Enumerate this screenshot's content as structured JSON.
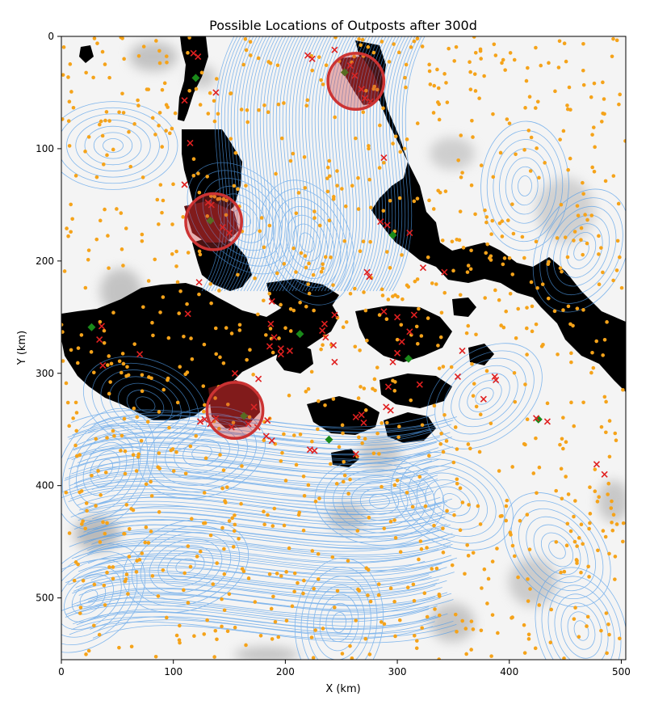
{
  "chart_data": {
    "type": "scatter",
    "title": "Possible Locations of Outposts after 300d",
    "xlabel": "X (km)",
    "ylabel": "Y (km)",
    "xlim": [
      0,
      504
    ],
    "ylim": [
      555,
      0
    ],
    "y_inverted": true,
    "xticks": [
      0,
      100,
      200,
      300,
      400,
      500
    ],
    "yticks": [
      0,
      100,
      200,
      300,
      400,
      500
    ],
    "grid": false,
    "legend": "none",
    "background": "grayscale field with black land masks and blue streamlines",
    "colors": {
      "streamlines": "#4f9be8",
      "candidate_points": "#f5a31a",
      "red_markers": "#e02020",
      "green_markers": "#1a8a1a",
      "circles": "#cc3333",
      "land": "#000000",
      "circled_land": "#5a0f0f"
    },
    "circles": [
      {
        "x": 263,
        "y": 40,
        "r": 25
      },
      {
        "x": 136,
        "y": 165,
        "r": 25
      },
      {
        "x": 155,
        "y": 333,
        "r": 25
      }
    ],
    "series": [
      {
        "marker": "diamond",
        "color": "#1a8a1a",
        "points": [
          [
            120,
            37
          ],
          [
            253,
            32
          ],
          [
            133,
            164
          ],
          [
            296,
            177
          ],
          [
            213,
            265
          ],
          [
            310,
            287
          ],
          [
            27,
            259
          ],
          [
            163,
            338
          ],
          [
            239,
            359
          ],
          [
            426,
            341
          ]
        ]
      },
      {
        "marker": "x",
        "color": "#e02020",
        "points": [
          [
            244,
            12
          ],
          [
            220,
            17
          ],
          [
            224,
            20
          ],
          [
            118,
            15
          ],
          [
            122,
            18
          ],
          [
            258,
            26
          ],
          [
            262,
            35
          ],
          [
            268,
            47
          ],
          [
            271,
            55
          ],
          [
            276,
            58
          ],
          [
            138,
            50
          ],
          [
            110,
            57
          ],
          [
            115,
            95
          ],
          [
            288,
            108
          ],
          [
            110,
            132
          ],
          [
            131,
            148
          ],
          [
            134,
            150
          ],
          [
            144,
            170
          ],
          [
            150,
            175
          ],
          [
            285,
            165
          ],
          [
            291,
            168
          ],
          [
            311,
            175
          ],
          [
            323,
            206
          ],
          [
            342,
            210
          ],
          [
            273,
            210
          ],
          [
            275,
            214
          ],
          [
            123,
            219
          ],
          [
            188,
            236
          ],
          [
            288,
            245
          ],
          [
            315,
            248
          ],
          [
            300,
            250
          ],
          [
            244,
            248
          ],
          [
            235,
            256
          ],
          [
            233,
            262
          ],
          [
            236,
            268
          ],
          [
            187,
            256
          ],
          [
            190,
            268
          ],
          [
            186,
            276
          ],
          [
            196,
            278
          ],
          [
            204,
            280
          ],
          [
            196,
            283
          ],
          [
            243,
            275
          ],
          [
            244,
            290
          ],
          [
            311,
            263
          ],
          [
            304,
            272
          ],
          [
            300,
            282
          ],
          [
            296,
            290
          ],
          [
            358,
            280
          ],
          [
            354,
            303
          ],
          [
            387,
            303
          ],
          [
            388,
            306
          ],
          [
            377,
            323
          ],
          [
            320,
            310
          ],
          [
            292,
            312
          ],
          [
            290,
            330
          ],
          [
            294,
            333
          ],
          [
            268,
            337
          ],
          [
            263,
            339
          ],
          [
            270,
            344
          ],
          [
            155,
            300
          ],
          [
            176,
            305
          ],
          [
            113,
            247
          ],
          [
            36,
            258
          ],
          [
            34,
            270
          ],
          [
            37,
            293
          ],
          [
            70,
            283
          ],
          [
            128,
            341
          ],
          [
            124,
            343
          ],
          [
            133,
            345
          ],
          [
            138,
            340
          ],
          [
            152,
            348
          ],
          [
            167,
            345
          ],
          [
            184,
            342
          ],
          [
            183,
            356
          ],
          [
            188,
            360
          ],
          [
            175,
            348
          ],
          [
            172,
            330
          ],
          [
            222,
            368
          ],
          [
            226,
            369
          ],
          [
            263,
            372
          ],
          [
            424,
            340
          ],
          [
            434,
            343
          ],
          [
            478,
            381
          ],
          [
            485,
            390
          ]
        ]
      }
    ]
  }
}
